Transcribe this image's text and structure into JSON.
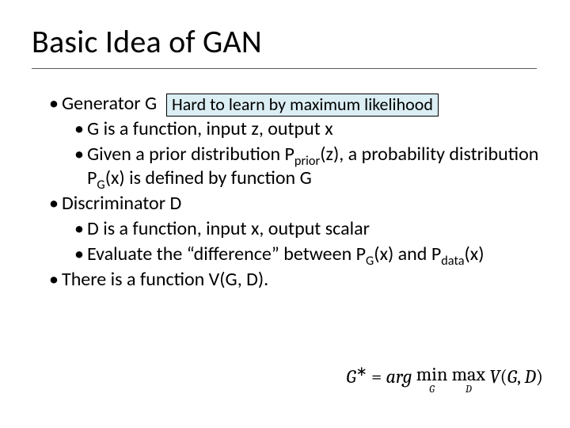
{
  "title": "Basic Idea of GAN",
  "badge": "Hard to learn by maximum likelihood",
  "bullets": {
    "gen": "Generator G",
    "gen_a": "G is a function, input z, output x",
    "gen_b_pre": "Given a prior distribution P",
    "gen_b_sub": "prior",
    "gen_b_mid": "(z), a probability distribution P",
    "gen_b_sub2": "G",
    "gen_b_post": "(x) is defined by function G",
    "disc": "Discriminator D",
    "disc_a": "D is a function, input x, output scalar",
    "disc_b_pre": "Evaluate the “difference” between P",
    "disc_b_sub": "G",
    "disc_b_mid": "(x) and P",
    "disc_b_sub2": "data",
    "disc_b_post": "(x)",
    "func": "There is a function V(G, D)."
  },
  "equation": {
    "lhs_G": "G",
    "lhs_star": "∗",
    "eq": " = ",
    "arg": "arg",
    "min": "min",
    "min_under": "G",
    "max": "max",
    "max_under": "D",
    "V": " V",
    "paren_open": "(",
    "G2": "G",
    "comma": ", ",
    "D": "D",
    "paren_close": ")"
  },
  "colors": {
    "badge_bg": "#dbeef4",
    "badge_border": "#000000",
    "underline": "#595959",
    "text": "#000000",
    "background": "#ffffff"
  },
  "fonts": {
    "title_size_pt": 30,
    "body_size_pt": 18,
    "eq_family": "Cambria"
  }
}
